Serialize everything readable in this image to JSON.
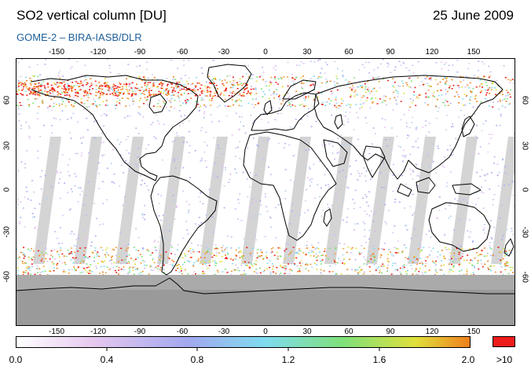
{
  "header": {
    "title": "SO2 vertical column [DU]",
    "date": "25 June 2009",
    "subtitle": "GOME-2  –  BIRA-IASB/DLR"
  },
  "map": {
    "projection": "equirectangular",
    "lon_range": [
      -180,
      180
    ],
    "lat_range": [
      -90,
      90
    ],
    "lon_ticks": [
      "-150",
      "-120",
      "-90",
      "-60",
      "-30",
      "0",
      "30",
      "60",
      "90",
      "120",
      "150"
    ],
    "lat_ticks": [
      "60",
      "30",
      "0",
      "-30",
      "-60"
    ],
    "background_color": "#ffffff",
    "no_data_color": "#d4d4d4",
    "polar_night_color": "#aaaaaa",
    "coastline_color": "#000000"
  },
  "colorbar": {
    "min": 0.0,
    "max": 2.0,
    "tick_labels": [
      "0.0",
      "0.4",
      "0.8",
      "1.2",
      "1.6",
      "2.0"
    ],
    "over_label": ">10",
    "over_color": "#ee1c1c",
    "colors": [
      "#ffffff",
      "#e6c8ef",
      "#a2a8ef",
      "#7fdcef",
      "#7fe07a",
      "#e0e03c",
      "#ef7f1c"
    ]
  }
}
